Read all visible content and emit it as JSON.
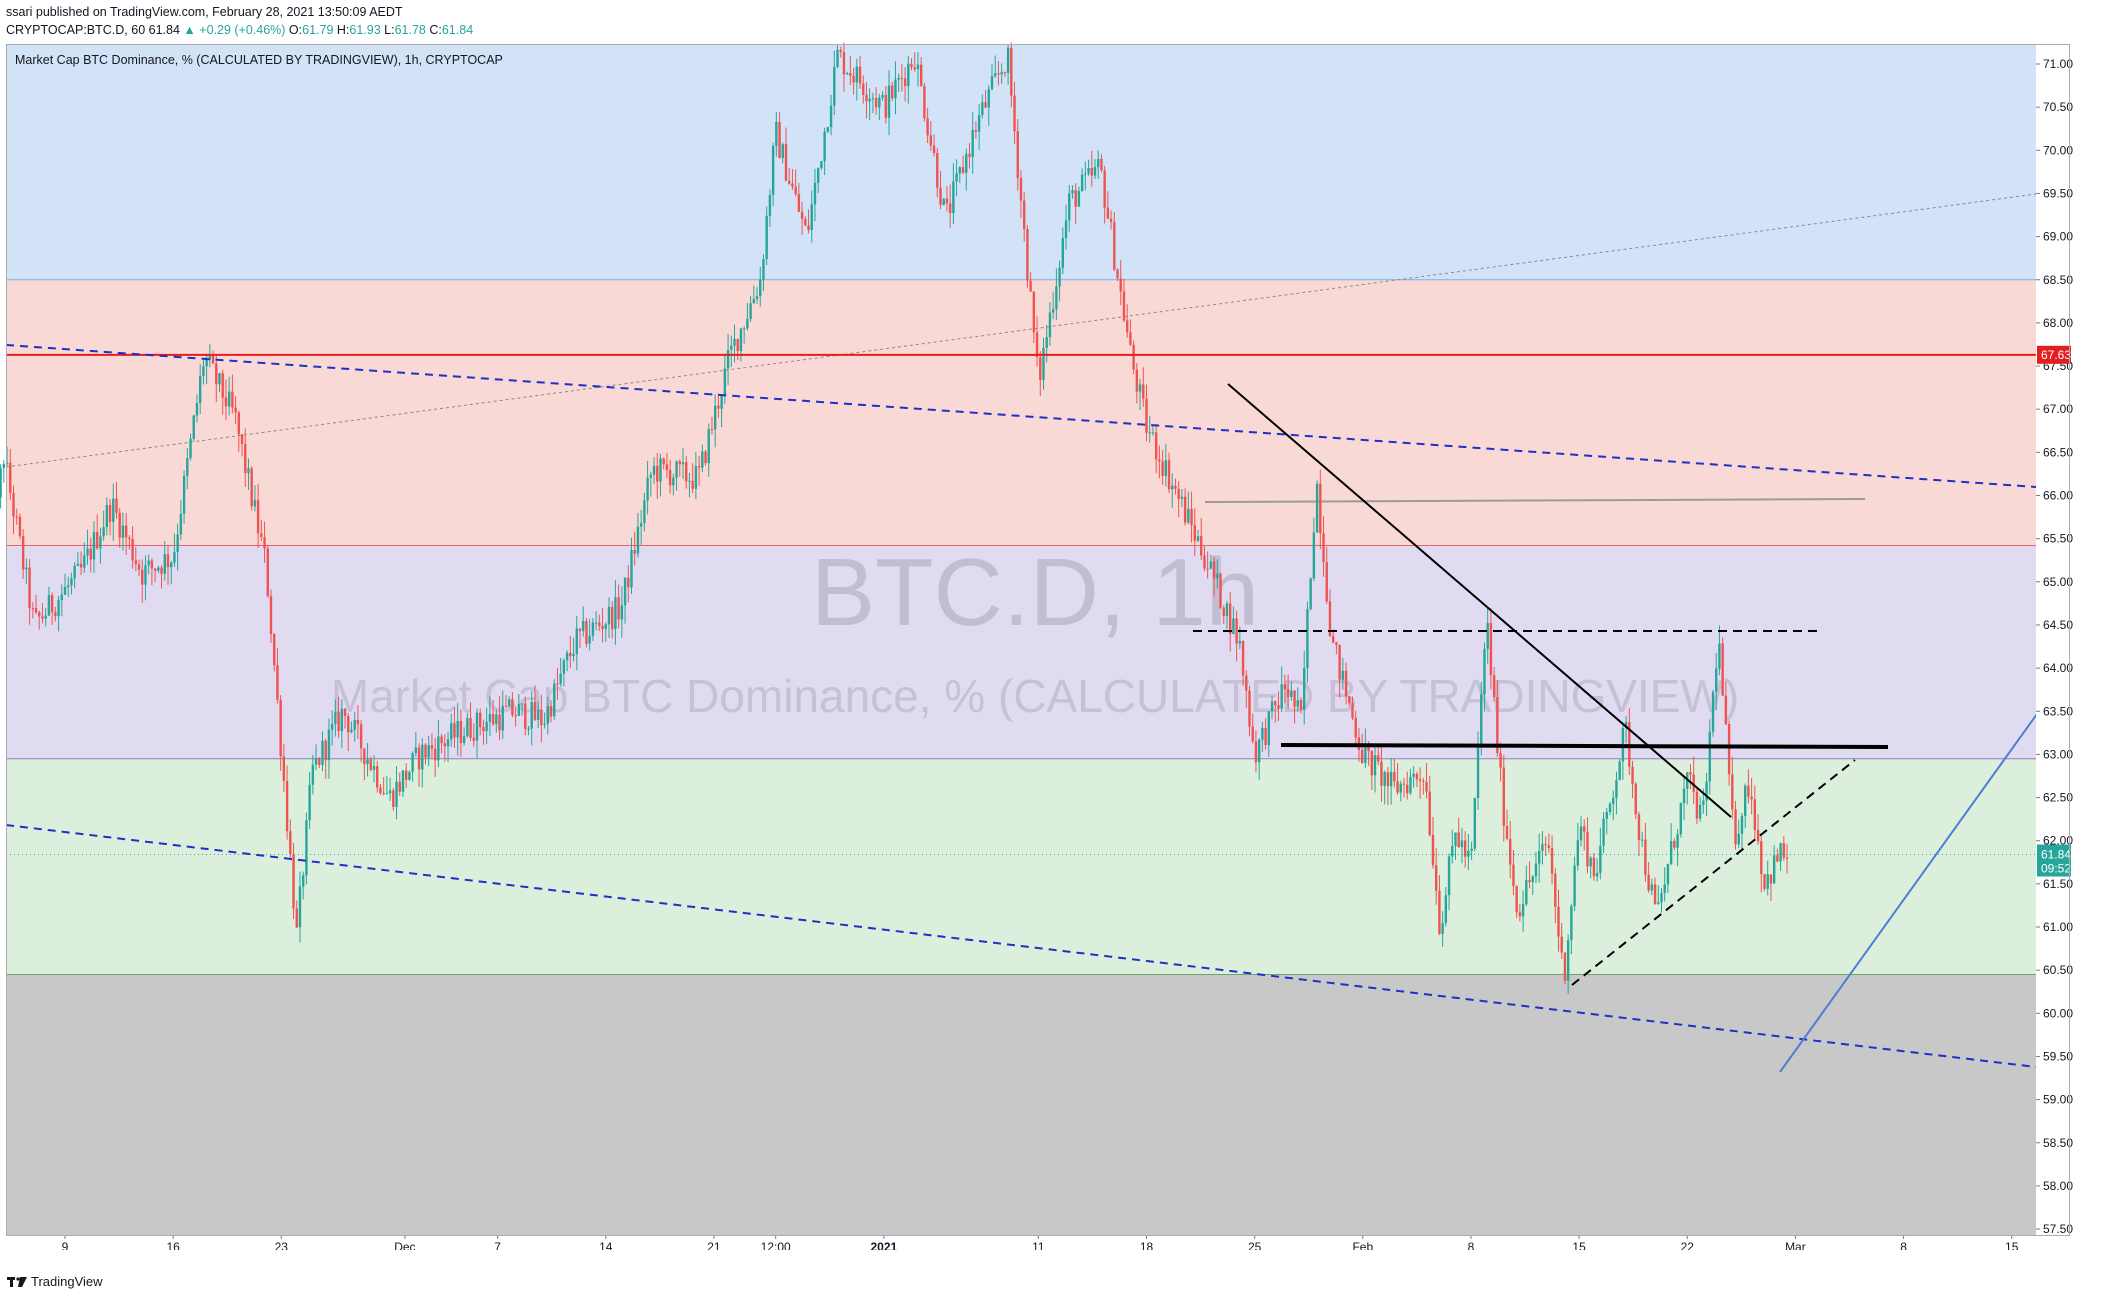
{
  "header": {
    "line1": "ssari published on TradingView.com, February 28, 2021 13:50:09 AEDT",
    "symbol": "CRYPTOCAP:BTC.D, 60",
    "last": "61.84",
    "change": "▲ +0.29 (+0.46%)",
    "o_label": "O:",
    "o_value": "61.79",
    "h_label": "H:",
    "h_value": "61.93",
    "l_label": "L:",
    "l_value": "61.78",
    "c_label": "C:",
    "c_value": "61.84"
  },
  "legend": {
    "title": "Market Cap BTC Dominance, % (CALCULATED BY TRADINGVIEW), 1h, CRYPTOCAP"
  },
  "watermark": {
    "symbol": "BTC.D, 1h",
    "description": "Market Cap BTC Dominance, % (CALCULATED BY TRADINGVIEW)"
  },
  "footer": {
    "brand": "TradingView"
  },
  "colors": {
    "up": "#26a69a",
    "down": "#ef5350",
    "zone_blue": "#d2e3f7",
    "zone_red": "#f9d9d6",
    "zone_purple": "#e1dbf1",
    "zone_green": "#dcefdc",
    "zone_gray": "#c8c8c8",
    "resistance": "#e41e1e",
    "channel": "#1f2fc9"
  },
  "chart_data": {
    "type": "candlestick",
    "y_ticks": [
      "71.00",
      "70.50",
      "70.00",
      "69.50",
      "69.00",
      "68.50",
      "68.00",
      "67.50",
      "67.00",
      "66.50",
      "66.00",
      "65.50",
      "65.00",
      "64.50",
      "64.00",
      "63.50",
      "63.00",
      "62.50",
      "62.00",
      "61.50",
      "61.00",
      "60.50",
      "60.00",
      "59.50",
      "59.00",
      "58.50",
      "58.00",
      "57.50"
    ],
    "ylim": [
      57.45,
      71.15
    ],
    "x_ticks": [
      {
        "label": "9",
        "bold": false
      },
      {
        "label": "16",
        "bold": false
      },
      {
        "label": "23",
        "bold": false
      },
      {
        "label": "Dec",
        "bold": false
      },
      {
        "label": "7",
        "bold": false
      },
      {
        "label": "14",
        "bold": false
      },
      {
        "label": "21",
        "bold": false
      },
      {
        "label": "12:00",
        "bold": false
      },
      {
        "label": "2021",
        "bold": true
      },
      {
        "label": "11",
        "bold": false
      },
      {
        "label": "18",
        "bold": false
      },
      {
        "label": "25",
        "bold": false
      },
      {
        "label": "Feb",
        "bold": false
      },
      {
        "label": "8",
        "bold": false
      },
      {
        "label": "15",
        "bold": false
      },
      {
        "label": "22",
        "bold": false
      },
      {
        "label": "Mar",
        "bold": false
      },
      {
        "label": "8",
        "bold": false
      },
      {
        "label": "15",
        "bold": false
      }
    ],
    "price_path": [
      [
        "2020-11-04",
        64.8
      ],
      [
        "2020-11-05",
        66.5
      ],
      [
        "2020-11-07",
        64.5
      ],
      [
        "2020-11-10",
        65.1
      ],
      [
        "2020-11-12",
        65.9
      ],
      [
        "2020-11-14",
        65.1
      ],
      [
        "2020-11-16",
        65.3
      ],
      [
        "2020-11-18",
        67.6
      ],
      [
        "2020-11-20",
        66.9
      ],
      [
        "2020-11-22",
        65.2
      ],
      [
        "2020-11-24",
        60.9
      ],
      [
        "2020-11-25",
        62.8
      ],
      [
        "2020-11-27",
        63.5
      ],
      [
        "2020-11-30",
        62.5
      ],
      [
        "2020-12-02",
        63.0
      ],
      [
        "2020-12-05",
        63.3
      ],
      [
        "2020-12-08",
        63.5
      ],
      [
        "2020-12-10",
        63.4
      ],
      [
        "2020-12-12",
        64.3
      ],
      [
        "2020-12-15",
        64.7
      ],
      [
        "2020-12-17",
        66.3
      ],
      [
        "2020-12-20",
        66.2
      ],
      [
        "2020-12-22",
        67.6
      ],
      [
        "2020-12-24",
        68.5
      ],
      [
        "2020-12-25",
        70.2
      ],
      [
        "2020-12-27",
        69.0
      ],
      [
        "2020-12-29",
        71.1
      ],
      [
        "2021-01-01",
        70.5
      ],
      [
        "2021-01-03",
        71.1
      ],
      [
        "2021-01-05",
        69.2
      ],
      [
        "2021-01-07",
        70.3
      ],
      [
        "2021-01-09",
        71.1
      ],
      [
        "2021-01-11",
        67.3
      ],
      [
        "2021-01-13",
        69.4
      ],
      [
        "2021-01-15",
        69.8
      ],
      [
        "2021-01-17",
        67.6
      ],
      [
        "2021-01-18",
        66.8
      ],
      [
        "2021-01-20",
        66.0
      ],
      [
        "2021-01-22",
        65.2
      ],
      [
        "2021-01-24",
        64.3
      ],
      [
        "2021-01-25",
        63.0
      ],
      [
        "2021-01-27",
        63.8
      ],
      [
        "2021-01-28",
        63.4
      ],
      [
        "2021-01-29",
        66.2
      ],
      [
        "2021-01-30",
        64.3
      ],
      [
        "2021-02-01",
        63.0
      ],
      [
        "2021-02-03",
        62.6
      ],
      [
        "2021-02-05",
        62.8
      ],
      [
        "2021-02-06",
        61.0
      ],
      [
        "2021-02-07",
        62.1
      ],
      [
        "2021-02-08",
        61.7
      ],
      [
        "2021-02-09",
        64.6
      ],
      [
        "2021-02-10",
        62.5
      ],
      [
        "2021-02-11",
        61.2
      ],
      [
        "2021-02-13",
        62.0
      ],
      [
        "2021-02-14",
        60.4
      ],
      [
        "2021-02-15",
        62.2
      ],
      [
        "2021-02-16",
        61.6
      ],
      [
        "2021-02-18",
        63.3
      ],
      [
        "2021-02-19",
        62.0
      ],
      [
        "2021-02-20",
        61.1
      ],
      [
        "2021-02-22",
        62.7
      ],
      [
        "2021-02-23",
        62.2
      ],
      [
        "2021-02-24",
        64.4
      ],
      [
        "2021-02-25",
        62.0
      ],
      [
        "2021-02-26",
        62.7
      ],
      [
        "2021-02-27",
        61.5
      ],
      [
        "2021-02-28",
        61.84
      ]
    ],
    "zones": [
      {
        "from": 68.5,
        "to": 71.3,
        "color": "zone_blue"
      },
      {
        "from": 65.42,
        "to": 68.5,
        "color": "zone_red"
      },
      {
        "from": 62.95,
        "to": 65.42,
        "color": "zone_purple"
      },
      {
        "from": 60.45,
        "to": 62.95,
        "color": "zone_green"
      },
      {
        "from": 57.4,
        "to": 60.45,
        "color": "zone_gray"
      }
    ],
    "resistance": {
      "value": 67.63,
      "label": "67.63"
    },
    "last_price": {
      "value": 61.84,
      "label": "61.84",
      "countdown": "09:52"
    },
    "grid": false
  }
}
